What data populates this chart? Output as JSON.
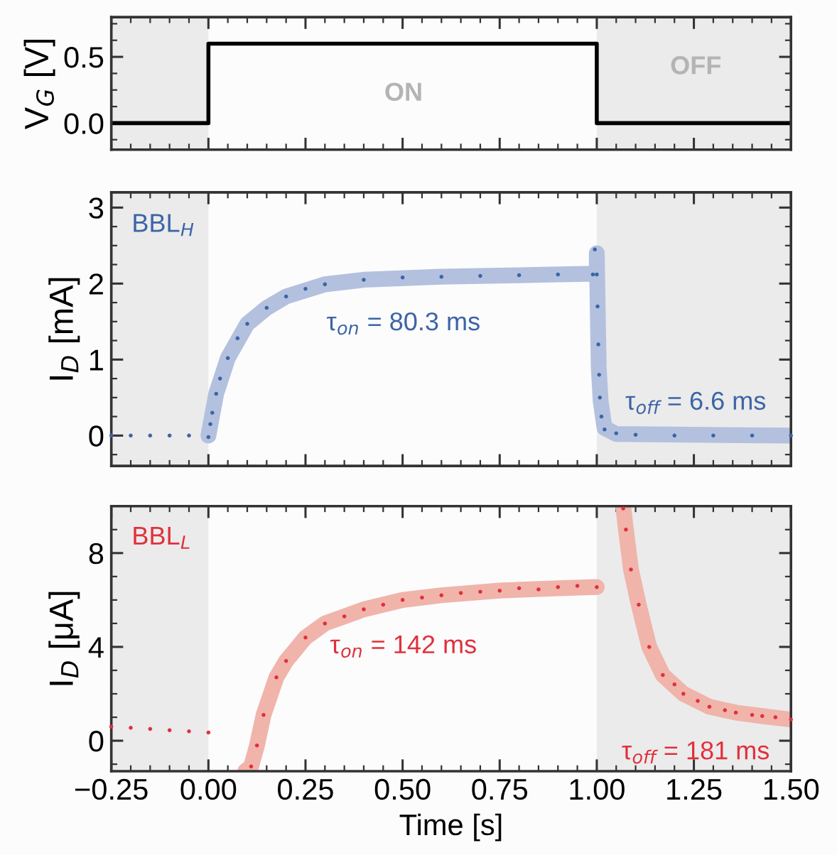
{
  "chart_data": [
    {
      "type": "line",
      "ylabel": "V$_{G}$ [V]",
      "xlim": [
        -0.25,
        1.5
      ],
      "xticks": [
        {
          "value": -0.25,
          "label": null
        },
        {
          "value": 0,
          "label": null
        },
        {
          "value": 0.25,
          "label": null
        },
        {
          "value": 0.5,
          "label": null
        },
        {
          "value": 0.75,
          "label": null
        },
        {
          "value": 1.0,
          "label": null
        },
        {
          "value": 1.25,
          "label": null
        },
        {
          "value": 1.5,
          "label": null
        }
      ],
      "ylim": [
        -0.2,
        0.8
      ],
      "yticks": [
        {
          "value": 0,
          "label": "0.0"
        },
        {
          "value": 0.5,
          "label": "0.5"
        }
      ],
      "tick_labels": "y",
      "grid": false,
      "legend": false,
      "marker": "none",
      "line_style": "solid",
      "series": [
        {
          "type": "line",
          "color": "#000000",
          "x": [
            -0.25,
            0,
            0,
            1,
            1,
            1.5
          ],
          "values": [
            0,
            0,
            0.6,
            0.6,
            0,
            0
          ]
        }
      ],
      "bands": [
        {
          "axis": "x",
          "from": -0.25,
          "to": 0,
          "color": "#ebebeb"
        },
        {
          "axis": "x",
          "from": 1.0,
          "to": 1.5,
          "color": "#ebebeb"
        }
      ],
      "annotations": [
        "ON",
        "OFF"
      ]
    },
    {
      "type": "scatter",
      "ylabel": "I$_{D}$ [mA]",
      "xlim": [
        -0.25,
        1.5
      ],
      "xticks": [
        {
          "value": -0.25,
          "label": null
        },
        {
          "value": 0,
          "label": null
        },
        {
          "value": 0.25,
          "label": null
        },
        {
          "value": 0.5,
          "label": null
        },
        {
          "value": 0.75,
          "label": null
        },
        {
          "value": 1.0,
          "label": null
        },
        {
          "value": 1.25,
          "label": null
        },
        {
          "value": 1.5,
          "label": null
        }
      ],
      "ylim": [
        -0.4,
        3.2
      ],
      "yticks": [
        0,
        1,
        2,
        3
      ],
      "tick_labels": "y",
      "grid": false,
      "legend": false,
      "series": [
        {
          "type": "line",
          "color": "#b3c1df",
          "x": [
            0,
            0.02,
            0.05,
            0.1,
            0.15,
            0.2,
            0.3,
            0.4,
            0.6,
            0.8,
            1.0,
            1.0,
            1.005,
            1.01,
            1.02,
            1.05,
            1.5
          ],
          "values": [
            0,
            0.55,
            1.02,
            1.47,
            1.68,
            1.83,
            1.99,
            2.05,
            2.09,
            2.11,
            2.13,
            2.4,
            0.9,
            0.45,
            0.1,
            0.02,
            0
          ]
        },
        {
          "type": "scatter",
          "marker": "circle",
          "name": "BBL$_{H}$",
          "color": "#3c64a6",
          "x": [
            -0.25,
            -0.2,
            -0.15,
            -0.1,
            -0.05,
            0.0,
            0.005,
            0.01,
            0.02,
            0.03,
            0.05,
            0.075,
            0.1,
            0.15,
            0.2,
            0.25,
            0.3,
            0.4,
            0.5,
            0.6,
            0.7,
            0.8,
            0.9,
            0.99,
            0.995,
            1.0,
            1.002,
            1.004,
            1.006,
            1.008,
            1.012,
            1.02,
            1.05,
            1.1,
            1.2,
            1.3,
            1.4,
            1.5
          ],
          "values": [
            0,
            0,
            0,
            0,
            0,
            -0.02,
            0.15,
            0.3,
            0.55,
            0.75,
            1.02,
            1.28,
            1.47,
            1.68,
            1.83,
            1.93,
            1.99,
            2.05,
            2.08,
            2.09,
            2.1,
            2.11,
            2.12,
            2.12,
            2.45,
            2.12,
            1.7,
            1.2,
            0.8,
            0.5,
            0.25,
            0.08,
            0.03,
            0.01,
            0,
            0,
            0,
            0
          ]
        }
      ],
      "bands": [
        {
          "axis": "x",
          "from": -0.25,
          "to": 0,
          "color": "#ebebeb"
        },
        {
          "axis": "x",
          "from": 1.0,
          "to": 1.5,
          "color": "#ebebeb"
        }
      ],
      "annotations": [
        "τ$_{on}$ = 80.3 ms",
        "τ$_{off}$ = 6.6 ms"
      ]
    },
    {
      "type": "scatter",
      "xlabel": "Time [s]",
      "ylabel": "I$_{D}$ [μA]",
      "xlim": [
        -0.25,
        1.5
      ],
      "xticks": [
        {
          "value": -0.25,
          "label": "−0.25"
        },
        {
          "value": 0,
          "label": "0.00"
        },
        {
          "value": 0.25,
          "label": "0.25"
        },
        {
          "value": 0.5,
          "label": "0.50"
        },
        {
          "value": 0.75,
          "label": "0.75"
        },
        {
          "value": 1.0,
          "label": "1.00"
        },
        {
          "value": 1.25,
          "label": "1.25"
        },
        {
          "value": 1.5,
          "label": "1.50"
        }
      ],
      "ylim": [
        -1.3,
        10
      ],
      "yticks": [
        0,
        4,
        8
      ],
      "grid": false,
      "legend": false,
      "series": [
        {
          "type": "line",
          "color": "#f0b4ab",
          "x": [
            0.095,
            0.11,
            0.125,
            0.142,
            0.175,
            0.2,
            0.25,
            0.3,
            0.4,
            0.5,
            0.6,
            0.75,
            0.9,
            1.0,
            1.03,
            1.068,
            1.075,
            1.088,
            1.108,
            1.135,
            1.17,
            1.223,
            1.29,
            1.358,
            1.426,
            1.5
          ],
          "values": [
            -1.3,
            -1.1,
            -0.2,
            1.1,
            2.7,
            3.4,
            4.4,
            5.0,
            5.6,
            6.0,
            6.2,
            6.4,
            6.5,
            6.55,
            null,
            10,
            9.0,
            7.3,
            5.8,
            4.0,
            2.8,
            2.0,
            1.45,
            1.2,
            1.05,
            0.9
          ]
        },
        {
          "type": "scatter",
          "marker": "circle",
          "name": "BBL$_{L}$",
          "color": "#e0303c",
          "x": [
            -0.25,
            -0.2,
            -0.15,
            -0.1,
            -0.05,
            0.0,
            0.11,
            0.125,
            0.142,
            0.175,
            0.2,
            0.25,
            0.3,
            0.35,
            0.4,
            0.45,
            0.5,
            0.55,
            0.6,
            0.65,
            0.7,
            0.75,
            0.8,
            0.85,
            0.9,
            0.95,
            1.0,
            1.068,
            1.075,
            1.088,
            1.108,
            1.135,
            1.17,
            1.2,
            1.223,
            1.26,
            1.29,
            1.33,
            1.358,
            1.4,
            1.426,
            1.46,
            1.5
          ],
          "values": [
            0.6,
            0.55,
            0.5,
            0.45,
            0.4,
            0.35,
            -1.1,
            -0.2,
            1.1,
            2.7,
            3.4,
            4.4,
            5.0,
            5.3,
            5.6,
            5.8,
            6.0,
            6.1,
            6.2,
            6.3,
            6.35,
            6.4,
            6.5,
            6.45,
            6.55,
            6.6,
            6.55,
            9.9,
            9.0,
            7.3,
            5.8,
            4.0,
            2.8,
            2.4,
            2.0,
            1.7,
            1.45,
            1.3,
            1.2,
            1.1,
            1.05,
            1.0,
            0.9
          ]
        }
      ],
      "bands": [
        {
          "axis": "x",
          "from": -0.25,
          "to": 0,
          "color": "#ebebeb"
        },
        {
          "axis": "x",
          "from": 1.0,
          "to": 1.5,
          "color": "#ebebeb"
        }
      ],
      "annotations": [
        "τ$_{on}$ = 142 ms",
        "τ$_{off}$ = 181 ms"
      ]
    }
  ]
}
